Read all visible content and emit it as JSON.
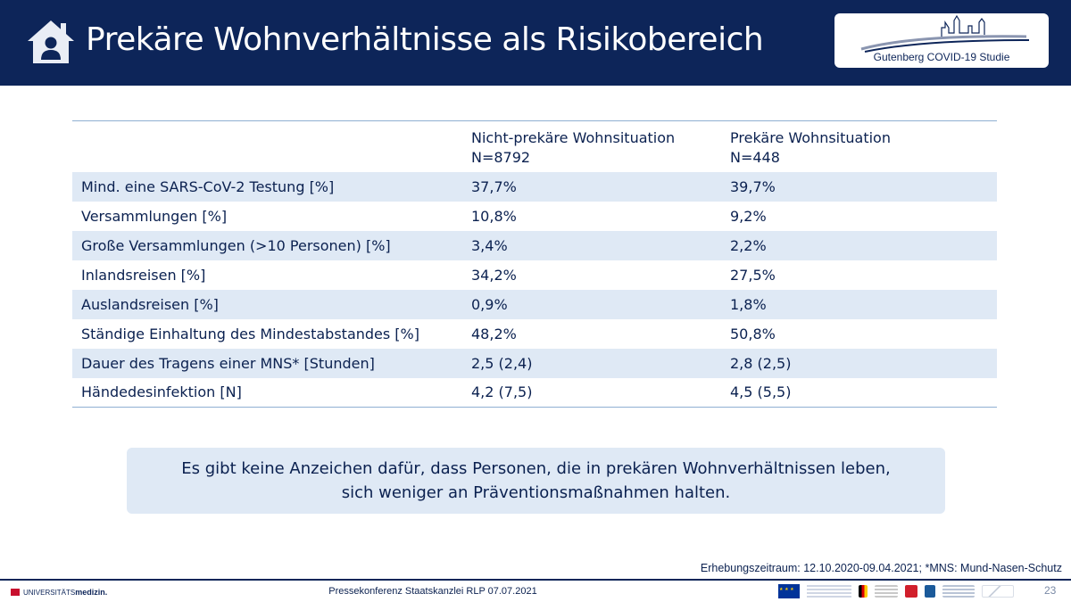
{
  "slide": {
    "title": "Prekäre Wohnverhältnisse als Risikobereich",
    "logo_text": "Gutenberg COVID-19 Studie",
    "icon": "home-icon"
  },
  "table": {
    "header": {
      "col1": "",
      "col2_line1": "Nicht-prekäre Wohnsituation",
      "col2_line2": "N=8792",
      "col3_line1": "Prekäre Wohnsituation",
      "col3_line2": "N=448"
    },
    "rows": [
      {
        "label": "Mind. eine SARS-CoV-2 Testung [%]",
        "non_precarious": "37,7%",
        "precarious": "39,7%"
      },
      {
        "label": "Versammlungen [%]",
        "non_precarious": "10,8%",
        "precarious": "9,2%"
      },
      {
        "label": "Große Versammlungen (>10 Personen) [%]",
        "non_precarious": "3,4%",
        "precarious": "2,2%"
      },
      {
        "label": "Inlandsreisen [%]",
        "non_precarious": "34,2%",
        "precarious": "27,5%"
      },
      {
        "label": "Auslandsreisen [%]",
        "non_precarious": "0,9%",
        "precarious": "1,8%"
      },
      {
        "label": "Ständige Einhaltung des Mindestabstandes [%]",
        "non_precarious": "48,2%",
        "precarious": "50,8%"
      },
      {
        "label": "Dauer des Tragens einer MNS* [Stunden]",
        "non_precarious": "2,5 (2,4)",
        "precarious": "2,8 (2,5)"
      },
      {
        "label": "Händedesinfektion [N]",
        "non_precarious": "4,2 (7,5)",
        "precarious": "4,5 (5,5)"
      }
    ]
  },
  "callout": {
    "line1": "Es gibt keine Anzeichen dafür, dass Personen, die in prekären Wohnverhältnissen leben,",
    "line2": "sich weniger an Präventionsmaßnahmen halten."
  },
  "footnote": "Erhebungszeitraum: 12.10.2020-09.04.2021; *MNS: Mund-Nasen-Schutz",
  "footer": {
    "uni_prefix": "UNIVERSITÄTS",
    "uni_bold": "medizin.",
    "center": "Pressekonferenz Staatskanzlei RLP 07.07.2021",
    "page_number": "23"
  },
  "colors": {
    "header_bg": "#0d2559",
    "row_band": "#dfe9f5",
    "text": "#0b2150",
    "rule": "#8fb0d2"
  }
}
